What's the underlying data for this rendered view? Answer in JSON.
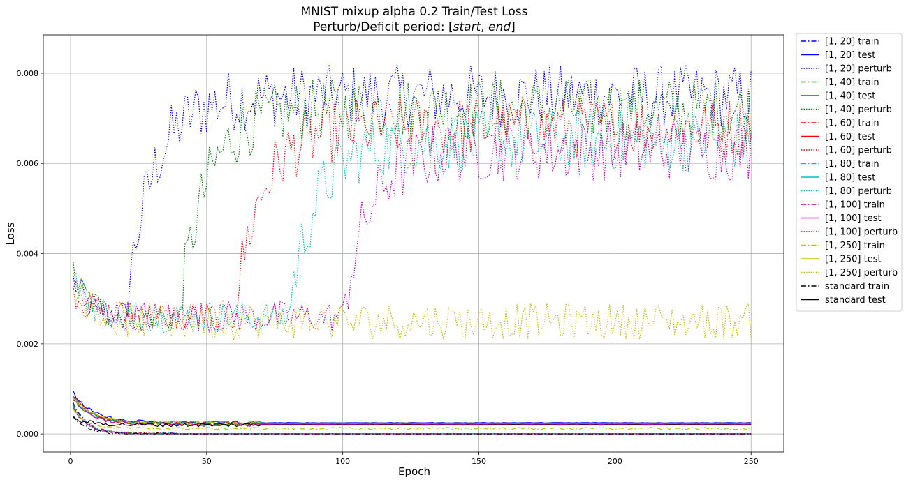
{
  "chart_data": {
    "type": "line",
    "title": "MNIST mixup alpha 0.2 Train/Test Loss",
    "subtitle_prefix": "Perturb/Deficit period: [",
    "subtitle_start": "start",
    "subtitle_sep": ", ",
    "subtitle_end": "end",
    "subtitle_suffix": "]",
    "xlabel": "Epoch",
    "ylabel": "Loss",
    "xlim": [
      -10,
      262
    ],
    "ylim": [
      -0.0004,
      0.00885
    ],
    "xticks": [
      0,
      50,
      100,
      150,
      200,
      250
    ],
    "yticks": [
      0.0,
      0.002,
      0.004,
      0.006,
      0.008
    ],
    "ytick_labels": [
      "0.000",
      "0.002",
      "0.004",
      "0.006",
      "0.008"
    ],
    "grid": true,
    "legend_position": "outside-right",
    "series": [
      {
        "name": "[1, 20] train",
        "color": "#0000ff",
        "style": "dashdot",
        "kind": "train",
        "start": 1,
        "end": 20,
        "y0": 0.0007,
        "final": 2e-06
      },
      {
        "name": "[1, 20] test",
        "color": "#0000ff",
        "style": "solid",
        "kind": "test",
        "start": 1,
        "end": 20,
        "y0": 0.00092,
        "final": 0.00025
      },
      {
        "name": "[1, 20] perturb",
        "color": "#0000ff",
        "style": "dotted",
        "kind": "perturb",
        "start": 1,
        "end": 20,
        "y0": 0.0034,
        "final": 0.0075
      },
      {
        "name": "[1, 40] train",
        "color": "#008000",
        "style": "dashdot",
        "kind": "train",
        "start": 1,
        "end": 40,
        "y0": 0.00065,
        "final": 3e-06
      },
      {
        "name": "[1, 40] test",
        "color": "#008000",
        "style": "solid",
        "kind": "test",
        "start": 1,
        "end": 40,
        "y0": 0.0008,
        "final": 0.00023
      },
      {
        "name": "[1, 40] perturb",
        "color": "#008000",
        "style": "dotted",
        "kind": "perturb",
        "start": 1,
        "end": 40,
        "y0": 0.0036,
        "final": 0.0072
      },
      {
        "name": "[1, 60] train",
        "color": "#ff0000",
        "style": "dashdot",
        "kind": "train",
        "start": 1,
        "end": 60,
        "y0": 0.00062,
        "final": 2e-06
      },
      {
        "name": "[1, 60] test",
        "color": "#ff0000",
        "style": "solid",
        "kind": "test",
        "start": 1,
        "end": 60,
        "y0": 0.00085,
        "final": 0.00022
      },
      {
        "name": "[1, 60] perturb",
        "color": "#ff0000",
        "style": "dotted",
        "kind": "perturb",
        "start": 1,
        "end": 60,
        "y0": 0.0032,
        "final": 0.0068
      },
      {
        "name": "[1, 80] train",
        "color": "#00bfbf",
        "style": "dashdot",
        "kind": "train",
        "start": 1,
        "end": 80,
        "y0": 0.0006,
        "final": 3e-06
      },
      {
        "name": "[1, 80] test",
        "color": "#00bfbf",
        "style": "solid",
        "kind": "test",
        "start": 1,
        "end": 80,
        "y0": 0.0008,
        "final": 0.00024
      },
      {
        "name": "[1, 80] perturb",
        "color": "#00bfbf",
        "style": "dotted",
        "kind": "perturb",
        "start": 1,
        "end": 80,
        "y0": 0.0035,
        "final": 0.0065
      },
      {
        "name": "[1, 100] train",
        "color": "#bf00bf",
        "style": "dashdot",
        "kind": "train",
        "start": 1,
        "end": 100,
        "y0": 0.00058,
        "final": 2e-06
      },
      {
        "name": "[1, 100] test",
        "color": "#bf00bf",
        "style": "solid",
        "kind": "test",
        "start": 1,
        "end": 100,
        "y0": 0.00078,
        "final": 0.00021
      },
      {
        "name": "[1, 100] perturb",
        "color": "#bf00bf",
        "style": "dotted",
        "kind": "perturb",
        "start": 1,
        "end": 100,
        "y0": 0.0033,
        "final": 0.0063
      },
      {
        "name": "[1, 250] train",
        "color": "#bfbf00",
        "style": "dashdot",
        "kind": "train",
        "start": 1,
        "end": 250,
        "y0": 0.00055,
        "final": 0.00012
      },
      {
        "name": "[1, 250] test",
        "color": "#bfbf00",
        "style": "solid",
        "kind": "test",
        "start": 1,
        "end": 250,
        "y0": 0.0008,
        "final": 0.00024
      },
      {
        "name": "[1, 250] perturb",
        "color": "#bfbf00",
        "style": "dotted",
        "kind": "perturb",
        "start": 1,
        "end": 250,
        "y0": 0.0035,
        "final": 0.0025
      },
      {
        "name": "standard train",
        "color": "#000000",
        "style": "dashdot",
        "kind": "train",
        "start": 0,
        "end": 0,
        "y0": 0.0004,
        "final": 1e-06
      },
      {
        "name": "standard test",
        "color": "#000000",
        "style": "solid",
        "kind": "test",
        "start": 0,
        "end": 0,
        "y0": 0.00033,
        "final": 0.0002
      }
    ]
  }
}
